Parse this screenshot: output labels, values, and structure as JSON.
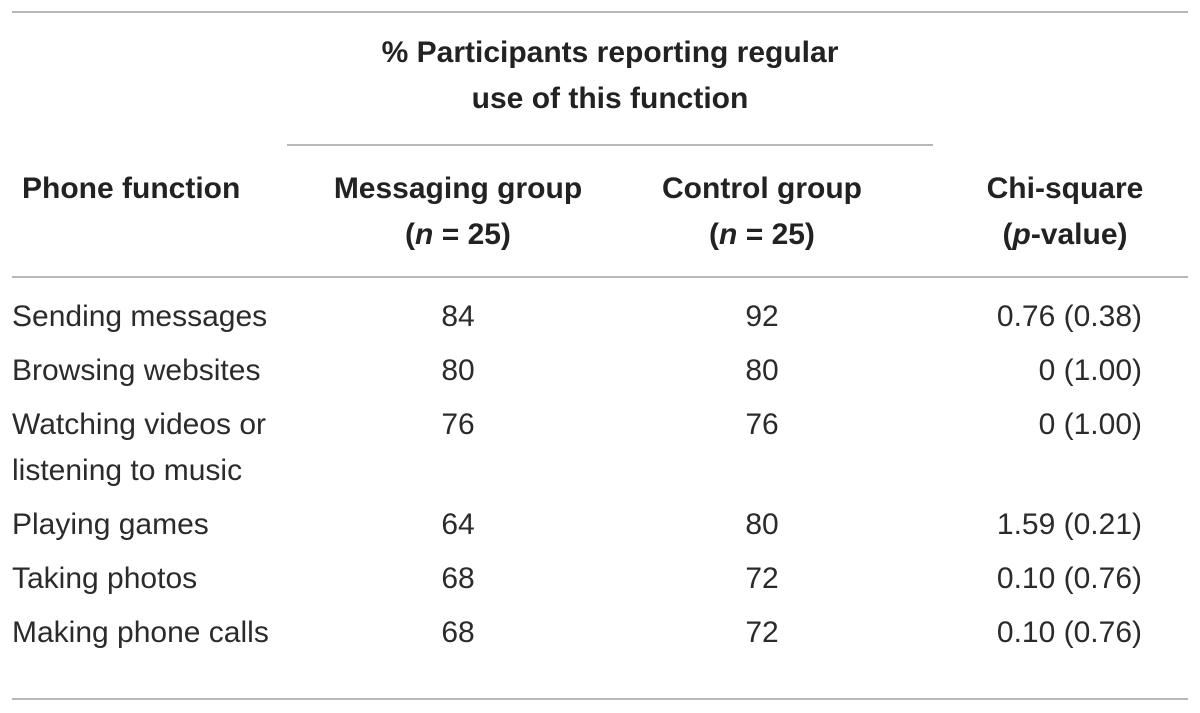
{
  "table": {
    "spanner": {
      "line1": "% Participants reporting regular",
      "line2": "use of this function"
    },
    "headers": {
      "function": "Phone function",
      "messaging": {
        "line1": "Messaging group",
        "n_var": "n",
        "n_rest": " = 25)"
      },
      "control": {
        "line1": "Control group",
        "n_var": "n",
        "n_rest": " = 25)"
      },
      "chi": {
        "line1": "Chi-square",
        "p_var": "p",
        "p_rest": "-value)"
      }
    },
    "rows": [
      {
        "function": "Sending messages",
        "messaging": "84",
        "control": "92",
        "chi": "0.76 (0.38)"
      },
      {
        "function": "Browsing websites",
        "messaging": "80",
        "control": "80",
        "chi": "0 (1.00)"
      },
      {
        "function": "Watching videos or listening to music",
        "messaging": "76",
        "control": "76",
        "chi": "0 (1.00)"
      },
      {
        "function": "Playing games",
        "messaging": "64",
        "control": "80",
        "chi": "1.59 (0.21)"
      },
      {
        "function": "Taking photos",
        "messaging": "68",
        "control": "72",
        "chi": "0.10 (0.76)"
      },
      {
        "function": "Making phone calls",
        "messaging": "68",
        "control": "72",
        "chi": "0.10 (0.76)"
      }
    ]
  }
}
